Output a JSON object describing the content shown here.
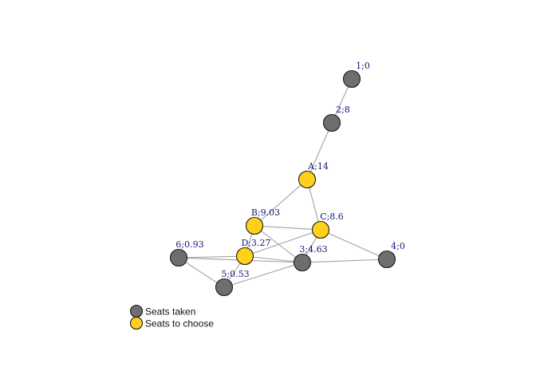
{
  "colors": {
    "taken": "#6e6e6e",
    "choose": "#ffd11a",
    "edge": "#a0a0a0"
  },
  "nodes": [
    {
      "id": "1",
      "label": "1;0",
      "group": "taken"
    },
    {
      "id": "2",
      "label": "2;8",
      "group": "taken"
    },
    {
      "id": "A",
      "label": "A;14",
      "group": "choose"
    },
    {
      "id": "B",
      "label": "B;9.03",
      "group": "choose"
    },
    {
      "id": "C",
      "label": "C;8.6",
      "group": "choose"
    },
    {
      "id": "D",
      "label": "D;3.27",
      "group": "choose"
    },
    {
      "id": "3",
      "label": "3;4.63",
      "group": "taken"
    },
    {
      "id": "4",
      "label": "4;0",
      "group": "taken"
    },
    {
      "id": "5",
      "label": "5;0.53",
      "group": "taken"
    },
    {
      "id": "6",
      "label": "6;0.93",
      "group": "taken"
    }
  ],
  "edges": [
    [
      "1",
      "2"
    ],
    [
      "2",
      "A"
    ],
    [
      "A",
      "B"
    ],
    [
      "A",
      "C"
    ],
    [
      "B",
      "C"
    ],
    [
      "B",
      "D"
    ],
    [
      "B",
      "3"
    ],
    [
      "C",
      "D"
    ],
    [
      "C",
      "3"
    ],
    [
      "C",
      "4"
    ],
    [
      "D",
      "6"
    ],
    [
      "D",
      "3"
    ],
    [
      "D",
      "5"
    ],
    [
      "6",
      "3"
    ],
    [
      "6",
      "5"
    ],
    [
      "5",
      "3"
    ],
    [
      "3",
      "4"
    ]
  ],
  "legend": {
    "items": [
      {
        "group": "taken",
        "label": "Seats taken"
      },
      {
        "group": "choose",
        "label": "Seats to choose"
      }
    ]
  }
}
